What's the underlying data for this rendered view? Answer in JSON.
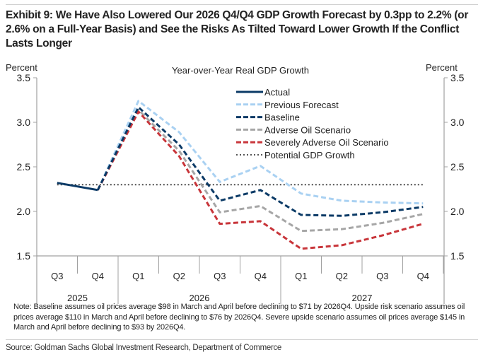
{
  "header": {
    "title": "Exhibit 9: We Have Also Lowered Our 2026 Q4/Q4 GDP Growth Forecast by 0.3pp to 2.2% (or 2.6% on a Full-Year Basis) and See the Risks As Tilted Toward Lower Growth If the Conflict Lasts Longer"
  },
  "footer": {
    "note": "Note: Baseline assumes oil prices average $98 in March and April before declining to $71 by 2026Q4. Upside risk scenario assumes oil prices average $110 in March and April before declining to $76 by 2026Q4. Severe upside scenario assumes oil prices average $145 in March and April before declining to $93 by 2026Q4.",
    "source": "Source: Goldman Sachs Global Investment Research, Department of Commerce"
  },
  "chart_data": {
    "type": "line",
    "title": "Year-over-Year Real GDP Growth",
    "ylabel_left": "Percent",
    "ylabel_right": "Percent",
    "ylim": [
      1.5,
      3.5
    ],
    "yticks": [
      "1.5",
      "2.0",
      "2.5",
      "3.0",
      "3.5"
    ],
    "ytick_values": [
      1.5,
      2.0,
      2.5,
      3.0,
      3.5
    ],
    "grid": false,
    "legend_position": "top-center",
    "categories": [
      "Q3",
      "Q4",
      "Q1",
      "Q2",
      "Q3",
      "Q4",
      "Q1",
      "Q2",
      "Q3",
      "Q4"
    ],
    "years": [
      {
        "label": "2025",
        "span": 2
      },
      {
        "label": "2026",
        "span": 4
      },
      {
        "label": "2027",
        "span": 4
      }
    ],
    "series": [
      {
        "name": "Actual",
        "color": "#0b3a66",
        "style": "solid",
        "values": [
          2.32,
          2.24,
          null,
          null,
          null,
          null,
          null,
          null,
          null,
          null
        ]
      },
      {
        "name": "Previous Forecast",
        "color": "#a9d1f2",
        "style": "dashed",
        "values": [
          null,
          2.24,
          3.24,
          2.89,
          2.33,
          2.51,
          2.2,
          2.12,
          2.1,
          2.09
        ]
      },
      {
        "name": "Baseline",
        "color": "#0b3a66",
        "style": "dashed",
        "values": [
          null,
          2.24,
          3.17,
          2.75,
          2.12,
          2.24,
          1.96,
          1.95,
          1.99,
          2.05
        ]
      },
      {
        "name": "Adverse Oil Scenario",
        "color": "#a6a6a6",
        "style": "dashed",
        "values": [
          null,
          2.24,
          3.14,
          2.68,
          1.99,
          2.06,
          1.78,
          1.8,
          1.87,
          1.97
        ]
      },
      {
        "name": "Severely Adverse Oil Scenario",
        "color": "#c8353a",
        "style": "dashed",
        "values": [
          null,
          2.24,
          3.12,
          2.62,
          1.86,
          1.89,
          1.58,
          1.62,
          1.73,
          1.86
        ]
      },
      {
        "name": "Potential GDP Growth",
        "color": "#555555",
        "style": "dotted",
        "values": [
          2.3,
          2.3,
          2.3,
          2.3,
          2.3,
          2.3,
          2.3,
          2.3,
          2.3,
          2.3
        ]
      }
    ]
  }
}
